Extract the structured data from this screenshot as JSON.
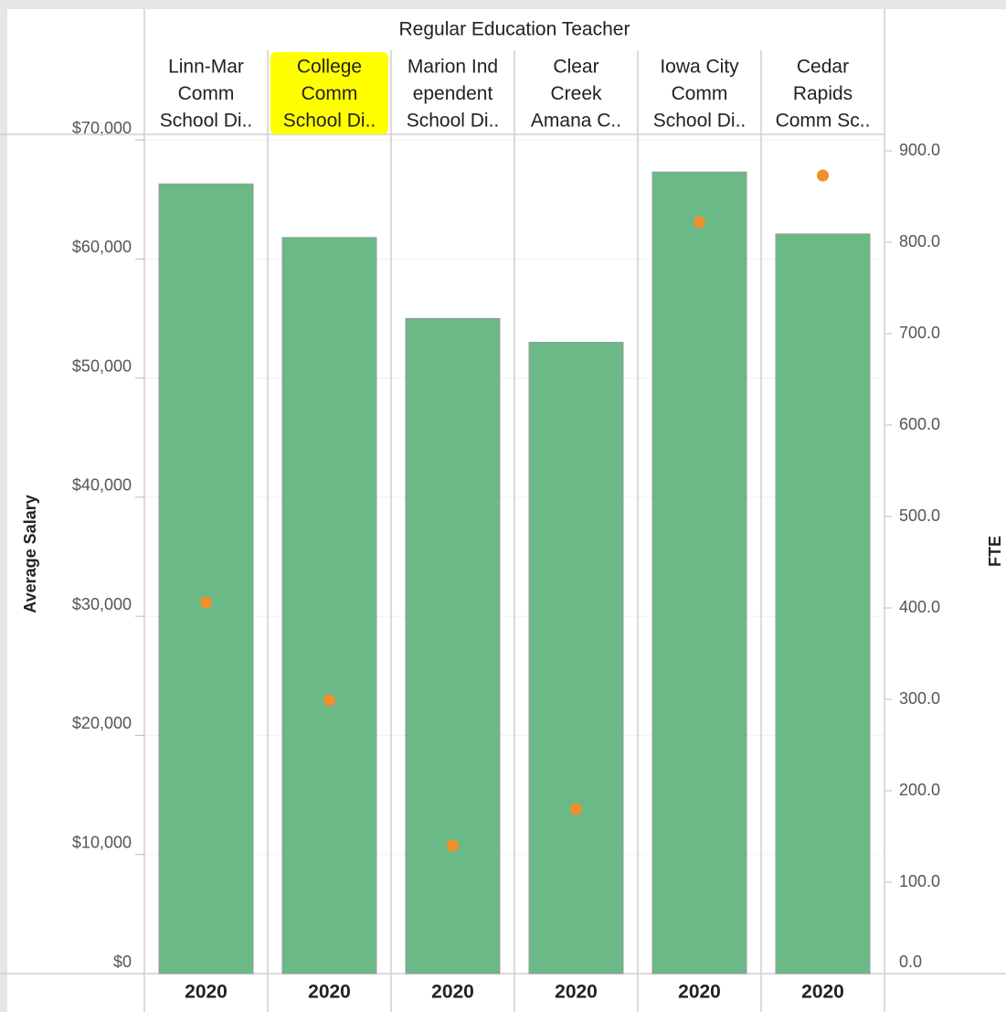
{
  "chart_data": {
    "type": "bar_dot",
    "column_header": "Regular Education Teacher",
    "categories": [
      [
        "Linn-Mar",
        "Comm",
        "School Di.."
      ],
      [
        "College",
        "Comm",
        "School Di.."
      ],
      [
        "Marion Ind",
        "ependent",
        "School Di.."
      ],
      [
        "Clear",
        "Creek",
        "Amana C.."
      ],
      [
        "Iowa City",
        "Comm",
        "School Di.."
      ],
      [
        "Cedar",
        "Rapids",
        "Comm Sc.."
      ]
    ],
    "x_labels": [
      "2020",
      "2020",
      "2020",
      "2020",
      "2020",
      "2020"
    ],
    "highlighted_category": 1,
    "highlight_color": "#ffff00",
    "ylabel": "Average Salary",
    "y2label": "FTE",
    "ylim": [
      0,
      70000
    ],
    "yticks": [
      {
        "value": 0,
        "label": "$0"
      },
      {
        "value": 10000,
        "label": "$10,000"
      },
      {
        "value": 20000,
        "label": "$20,000"
      },
      {
        "value": 30000,
        "label": "$30,000"
      },
      {
        "value": 40000,
        "label": "$40,000"
      },
      {
        "value": 50000,
        "label": "$50,000"
      },
      {
        "value": 60000,
        "label": "$60,000"
      },
      {
        "value": 70000,
        "label": "$70,000"
      }
    ],
    "y2lim": [
      0,
      912
    ],
    "y2ticks": [
      {
        "value": 0,
        "label": "0.0"
      },
      {
        "value": 100,
        "label": "100.0"
      },
      {
        "value": 200,
        "label": "200.0"
      },
      {
        "value": 300,
        "label": "300.0"
      },
      {
        "value": 400,
        "label": "400.0"
      },
      {
        "value": 500,
        "label": "500.0"
      },
      {
        "value": 600,
        "label": "600.0"
      },
      {
        "value": 700,
        "label": "700.0"
      },
      {
        "value": 800,
        "label": "800.0"
      },
      {
        "value": 900,
        "label": "900.0"
      }
    ],
    "grid": true,
    "series": [
      {
        "name": "Average Salary",
        "color": "#6ab987",
        "values": [
          66300,
          61800,
          55000,
          53000,
          67300,
          62100
        ]
      },
      {
        "name": "FTE",
        "color": "#f28e2b",
        "axis": "y2",
        "values": [
          406,
          299,
          140,
          180,
          822,
          873
        ]
      }
    ]
  }
}
